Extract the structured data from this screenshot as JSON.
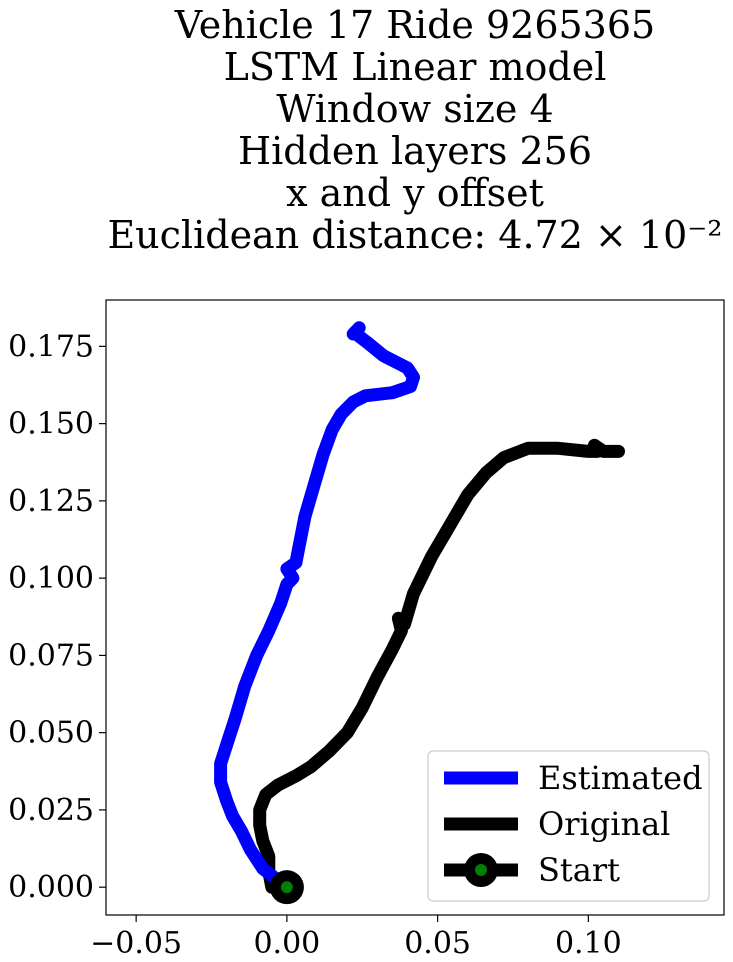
{
  "chart_data": {
    "type": "line",
    "title_lines": [
      "Vehicle 17 Ride 9265365",
      "LSTM Linear model",
      "Window size 4",
      "Hidden layers 256",
      "x and y offset",
      "Euclidean distance: 4.72 × 10⁻²"
    ],
    "xlabel": "",
    "ylabel": "",
    "xlim": [
      -0.06,
      0.145
    ],
    "ylim": [
      -0.009,
      0.19
    ],
    "x_ticks": [
      "−0.05",
      "0.00",
      "0.05",
      "0.10"
    ],
    "x_tick_values": [
      -0.05,
      0.0,
      0.05,
      0.1
    ],
    "y_ticks": [
      "0.000",
      "0.025",
      "0.050",
      "0.075",
      "0.100",
      "0.125",
      "0.150",
      "0.175"
    ],
    "y_tick_values": [
      0.0,
      0.025,
      0.05,
      0.075,
      0.1,
      0.125,
      0.15,
      0.175
    ],
    "grid": false,
    "legend_position": "lower-right",
    "series": [
      {
        "name": "Estimated",
        "color": "#0000ff",
        "points": [
          [
            0.0,
            0.0
          ],
          [
            -0.004,
            0.003
          ],
          [
            -0.008,
            0.006
          ],
          [
            -0.012,
            0.012
          ],
          [
            -0.015,
            0.018
          ],
          [
            -0.018,
            0.023
          ],
          [
            -0.02,
            0.028
          ],
          [
            -0.022,
            0.034
          ],
          [
            -0.022,
            0.04
          ],
          [
            -0.02,
            0.046
          ],
          [
            -0.017,
            0.055
          ],
          [
            -0.014,
            0.065
          ],
          [
            -0.01,
            0.075
          ],
          [
            -0.006,
            0.083
          ],
          [
            -0.002,
            0.092
          ],
          [
            0.0,
            0.098
          ],
          [
            0.002,
            0.1
          ],
          [
            0.0,
            0.103
          ],
          [
            0.003,
            0.105
          ],
          [
            0.004,
            0.11
          ],
          [
            0.006,
            0.12
          ],
          [
            0.009,
            0.13
          ],
          [
            0.012,
            0.14
          ],
          [
            0.015,
            0.148
          ],
          [
            0.018,
            0.153
          ],
          [
            0.022,
            0.157
          ],
          [
            0.026,
            0.159
          ],
          [
            0.035,
            0.16
          ],
          [
            0.041,
            0.162
          ],
          [
            0.042,
            0.165
          ],
          [
            0.04,
            0.168
          ],
          [
            0.032,
            0.172
          ],
          [
            0.027,
            0.176
          ],
          [
            0.023,
            0.179
          ],
          [
            0.022,
            0.179
          ],
          [
            0.024,
            0.181
          ]
        ]
      },
      {
        "name": "Original",
        "color": "#000000",
        "points": [
          [
            0.0,
            0.0
          ],
          [
            -0.005,
            0.0
          ],
          [
            -0.006,
            0.005
          ],
          [
            -0.006,
            0.01
          ],
          [
            -0.008,
            0.015
          ],
          [
            -0.009,
            0.02
          ],
          [
            -0.009,
            0.025
          ],
          [
            -0.007,
            0.03
          ],
          [
            -0.003,
            0.033
          ],
          [
            0.003,
            0.036
          ],
          [
            0.008,
            0.039
          ],
          [
            0.014,
            0.044
          ],
          [
            0.02,
            0.05
          ],
          [
            0.025,
            0.058
          ],
          [
            0.03,
            0.068
          ],
          [
            0.035,
            0.077
          ],
          [
            0.038,
            0.083
          ],
          [
            0.037,
            0.087
          ],
          [
            0.039,
            0.085
          ],
          [
            0.042,
            0.095
          ],
          [
            0.048,
            0.107
          ],
          [
            0.054,
            0.117
          ],
          [
            0.06,
            0.127
          ],
          [
            0.066,
            0.134
          ],
          [
            0.072,
            0.139
          ],
          [
            0.08,
            0.142
          ],
          [
            0.09,
            0.142
          ],
          [
            0.1,
            0.141
          ],
          [
            0.103,
            0.141
          ],
          [
            0.102,
            0.143
          ],
          [
            0.105,
            0.141
          ],
          [
            0.11,
            0.141
          ]
        ]
      }
    ],
    "start": {
      "name": "Start",
      "point": [
        0.0,
        0.0
      ],
      "outer_color": "#000000",
      "inner_color": "#008000"
    }
  }
}
